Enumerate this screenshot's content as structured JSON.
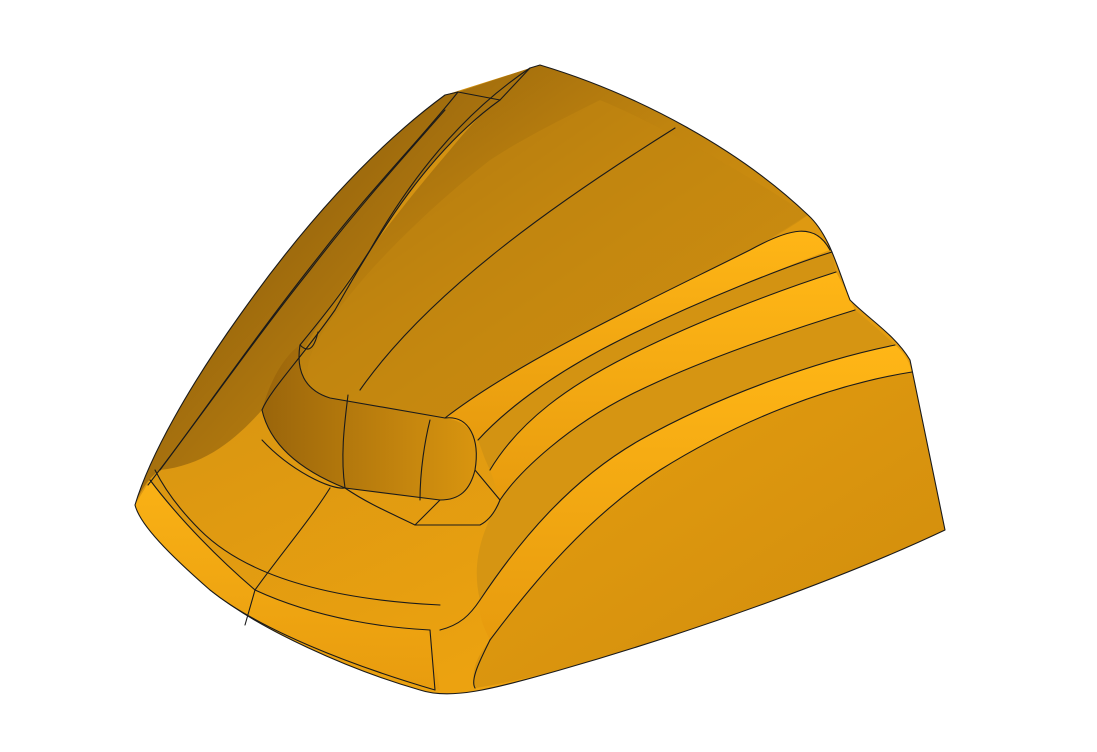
{
  "scene": {
    "subject": "",
    "background_color": "#ffffff",
    "colors": {
      "base": "#e8a010",
      "highlight": "#ffb414",
      "shadow": "#8a5a0a",
      "edge": "#1a1a1a"
    }
  }
}
